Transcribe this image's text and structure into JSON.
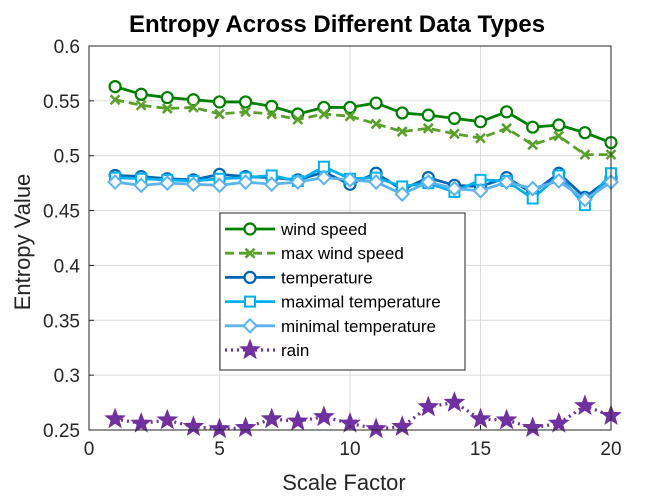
{
  "chart_data": {
    "type": "line",
    "title": "Entropy Across Different Data Types",
    "xlabel": "Scale Factor",
    "ylabel": "Entropy Value",
    "xlim": [
      0,
      20
    ],
    "ylim": [
      0.25,
      0.6
    ],
    "xticks": [
      0,
      5,
      10,
      15,
      20
    ],
    "yticks": [
      0.25,
      0.3,
      0.35,
      0.4,
      0.45,
      0.5,
      0.55,
      0.6
    ],
    "ytick_labels": [
      "0.25",
      "0.3",
      "0.35",
      "0.4",
      "0.45",
      "0.5",
      "0.55",
      "0.6"
    ],
    "grid": true,
    "legend_position": "center",
    "x": [
      1,
      2,
      3,
      4,
      5,
      6,
      7,
      8,
      9,
      10,
      11,
      12,
      13,
      14,
      15,
      16,
      17,
      18,
      19,
      20
    ],
    "series": [
      {
        "name": "wind speed",
        "color": "#008000",
        "dash": "solid",
        "marker": "circle",
        "values": [
          0.563,
          0.556,
          0.553,
          0.551,
          0.549,
          0.549,
          0.545,
          0.538,
          0.544,
          0.544,
          0.548,
          0.539,
          0.537,
          0.534,
          0.531,
          0.54,
          0.526,
          0.528,
          0.521,
          0.512
        ]
      },
      {
        "name": "max wind speed",
        "color": "#5aa02c",
        "dash": "dashed",
        "marker": "x",
        "values": [
          0.551,
          0.546,
          0.543,
          0.544,
          0.538,
          0.54,
          0.538,
          0.533,
          0.538,
          0.536,
          0.529,
          0.522,
          0.525,
          0.52,
          0.516,
          0.525,
          0.51,
          0.518,
          0.501,
          0.501
        ]
      },
      {
        "name": "temperature",
        "color": "#0066b3",
        "dash": "solid",
        "marker": "circle",
        "values": [
          0.482,
          0.481,
          0.479,
          0.478,
          0.483,
          0.481,
          0.48,
          0.478,
          0.485,
          0.474,
          0.484,
          0.469,
          0.48,
          0.473,
          0.472,
          0.48,
          0.466,
          0.484,
          0.462,
          0.48
        ]
      },
      {
        "name": "maximal temperature",
        "color": "#00b0f0",
        "dash": "solid",
        "marker": "square",
        "values": [
          0.48,
          0.479,
          0.478,
          0.477,
          0.479,
          0.48,
          0.482,
          0.477,
          0.49,
          0.479,
          0.48,
          0.472,
          0.475,
          0.467,
          0.478,
          0.477,
          0.461,
          0.482,
          0.455,
          0.484
        ]
      },
      {
        "name": "minimal temperature",
        "color": "#5cb3f0",
        "dash": "solid",
        "marker": "diamond",
        "values": [
          0.476,
          0.473,
          0.475,
          0.474,
          0.473,
          0.476,
          0.474,
          0.476,
          0.48,
          0.478,
          0.476,
          0.465,
          0.476,
          0.47,
          0.468,
          0.476,
          0.47,
          0.477,
          0.46,
          0.476
        ]
      },
      {
        "name": "rain",
        "color": "#7030a0",
        "dash": "dotted",
        "marker": "star",
        "values": [
          0.26,
          0.256,
          0.259,
          0.253,
          0.251,
          0.252,
          0.26,
          0.258,
          0.262,
          0.256,
          0.251,
          0.253,
          0.271,
          0.275,
          0.26,
          0.259,
          0.252,
          0.256,
          0.272,
          0.263
        ]
      }
    ]
  }
}
